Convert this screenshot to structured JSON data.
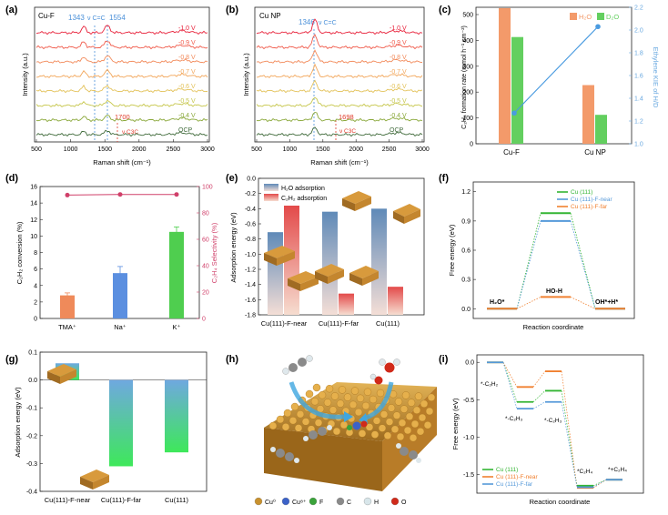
{
  "panels": {
    "a": {
      "letter": "(a)",
      "tag": "Cu-F",
      "peak1": "1343",
      "peak2": "1554",
      "nu_label": "ν C=C",
      "c3_peak": "1700",
      "c3_label": "ν C3C",
      "curves": [
        "-1.0 V",
        "-0.9 V",
        "-0.8 V",
        "-0.7 V",
        "-0.6 V",
        "-0.5 V",
        "-0.4 V",
        "OCP"
      ],
      "xlabel": "Raman shift (cm⁻¹)",
      "ylabel": "Intensity (a.u.)",
      "xticks": [
        "500",
        "1000",
        "1500",
        "2000",
        "2500",
        "3000"
      ]
    },
    "b": {
      "letter": "(b)",
      "tag": "Cu NP",
      "peak1": "1346",
      "nu_label": "ν C=C",
      "c3_peak": "1698",
      "c3_label": "ν C3C",
      "curves": [
        "-1.0 V",
        "-0.9 V",
        "-0.8 V",
        "-0.7 V",
        "-0.6 V",
        "-0.5 V",
        "-0.4 V",
        "OCP"
      ],
      "xlabel": "Raman shift (cm⁻¹)",
      "ylabel": "Intensity (a.u.)",
      "xticks": [
        "500",
        "1000",
        "1500",
        "2000",
        "2500",
        "3000"
      ]
    },
    "c": {
      "letter": "(c)"
    },
    "d": {
      "letter": "(d)"
    },
    "e": {
      "letter": "(e)"
    },
    "f": {
      "letter": "(f)",
      "lbl_h2o": "H₂O*",
      "lbl_hoh": "HO-H",
      "lbl_ohh": "OH*+H*"
    },
    "g": {
      "letter": "(g)"
    },
    "h": {
      "letter": "(h)",
      "legend": [
        {
          "sym": "Cu⁰",
          "color": "#c8912e"
        },
        {
          "sym": "Cu⁸⁺",
          "color": "#3c62c8"
        },
        {
          "sym": "F",
          "color": "#3aa33a"
        },
        {
          "sym": "C",
          "color": "#8a8a8a"
        },
        {
          "sym": "H",
          "color": "#d8e6ea"
        },
        {
          "sym": "O",
          "color": "#d02a1a"
        }
      ]
    },
    "i": {
      "letter": "(i)",
      "lbl_c2h2": "*-C₂H₂",
      "lbl_c2h3a": "*-C₂H₃",
      "lbl_c2h3b": "*-C₂H₃",
      "lbl_c2h4": "*C₂H₄",
      "lbl_final": "*+C₂H₄"
    }
  },
  "chart_data": [
    {
      "id": "c",
      "type": "bar",
      "categories": [
        "Cu-F",
        "Cu NP"
      ],
      "series": [
        {
          "name": "H₂O",
          "values": [
            525,
            227
          ],
          "color": "#f39a6a"
        },
        {
          "name": "D₂O",
          "values": [
            413,
            112
          ],
          "color": "#63cf5f"
        }
      ],
      "secondary": {
        "name": "Ethylene KIE of H/D",
        "values": [
          1.27,
          2.03
        ],
        "ylim": [
          1.0,
          2.2
        ],
        "yticks": [
          "1.0",
          "1.2",
          "1.4",
          "1.6",
          "1.8",
          "2.0",
          "2.2"
        ],
        "ylabel": "Ethylene KIE of H/D"
      },
      "ylim": [
        0,
        500
      ],
      "yticks": [
        "0",
        "100",
        "200",
        "300",
        "400",
        "500"
      ],
      "ylabel": "C₂H₄ formation rate (mmol h⁻¹ cm⁻²)"
    },
    {
      "id": "d",
      "type": "bar",
      "categories": [
        "TMA⁺",
        "Na⁺",
        "K⁺"
      ],
      "values": [
        2.8,
        5.5,
        10.5
      ],
      "errors": [
        0.3,
        0.8,
        0.6
      ],
      "colors": [
        "#ef8a5a",
        "#5b8fe0",
        "#4fce4f"
      ],
      "secondary": {
        "name": "C₂H₄ Selectivity",
        "values": [
          93.5,
          94.0,
          94.0
        ],
        "ylim": [
          0,
          100
        ],
        "yticks": [
          "0",
          "20",
          "40",
          "60",
          "80",
          "100"
        ],
        "ylabel": "C₂H₄ Selectivity (%)"
      },
      "ylim": [
        0,
        16
      ],
      "yticks": [
        "0",
        "2",
        "4",
        "6",
        "8",
        "10",
        "12",
        "14",
        "16"
      ],
      "ylabel": "C₂H₂ conversion (%)"
    },
    {
      "id": "e",
      "type": "bar",
      "categories": [
        "Cu(111)-F-near",
        "Cu(111)-F-far",
        "Cu(111)"
      ],
      "series": [
        {
          "name": "H₂O adsorption",
          "values": [
            -0.71,
            -0.44,
            -0.4
          ],
          "color": "#6f96c0"
        },
        {
          "name": "C₂H₂ adsorption",
          "values": [
            -0.36,
            -1.52,
            -1.43
          ],
          "color": "#e55a5a"
        }
      ],
      "ylim": [
        0,
        -1.8
      ],
      "yticks": [
        "0.0",
        "-0.2",
        "-0.4",
        "-0.6",
        "-0.8",
        "-1.0",
        "-1.2",
        "-1.4",
        "-1.6",
        "-1.8"
      ],
      "ylabel": "Adsorption energy (eV)"
    },
    {
      "id": "f",
      "type": "line",
      "xlabel": "Reaction coordinate",
      "ylabel": "Free energy (eV)",
      "ylim": [
        -0.1,
        1.3
      ],
      "yticks": [
        "0.0",
        "0.3",
        "0.6",
        "0.9",
        "1.2"
      ],
      "series": [
        {
          "name": "Cu (111)",
          "values": [
            0.0,
            0.98,
            0.0
          ],
          "color": "#33b533"
        },
        {
          "name": "Cu (111)-F-near",
          "values": [
            0.0,
            0.9,
            0.0
          ],
          "color": "#5599d9"
        },
        {
          "name": "Cu (111)-F-far",
          "values": [
            0.0,
            0.12,
            0.0
          ],
          "color": "#f08030"
        }
      ]
    },
    {
      "id": "g",
      "type": "bar",
      "categories": [
        "Cu(111)-F-near",
        "Cu(111)-F-far",
        "Cu(111)"
      ],
      "values": [
        0.06,
        -0.31,
        -0.26
      ],
      "ylim": [
        -0.4,
        0.1
      ],
      "yticks": [
        "0.1",
        "0.0",
        "-0.1",
        "-0.2",
        "-0.3",
        "-0.4"
      ],
      "ylabel": "Adsorption energy (eV)"
    },
    {
      "id": "i",
      "type": "line",
      "xlabel": "Reaction coordinate",
      "ylabel": "Free energy (eV)",
      "ylim": [
        -1.75,
        0.1
      ],
      "yticks": [
        "0.0",
        "-0.5",
        "-1.0",
        "-1.5"
      ],
      "series": [
        {
          "name": "Cu (111)",
          "values": [
            0.0,
            -0.53,
            -0.38,
            -1.65,
            -1.57
          ],
          "color": "#33b533"
        },
        {
          "name": "Cu (111)-F-near",
          "values": [
            0.0,
            -0.33,
            -0.12,
            -1.68,
            -1.57
          ],
          "color": "#f08030"
        },
        {
          "name": "Cu (111)-F-far",
          "values": [
            0.0,
            -0.62,
            -0.53,
            -1.67,
            -1.57
          ],
          "color": "#5599d9"
        }
      ]
    }
  ]
}
